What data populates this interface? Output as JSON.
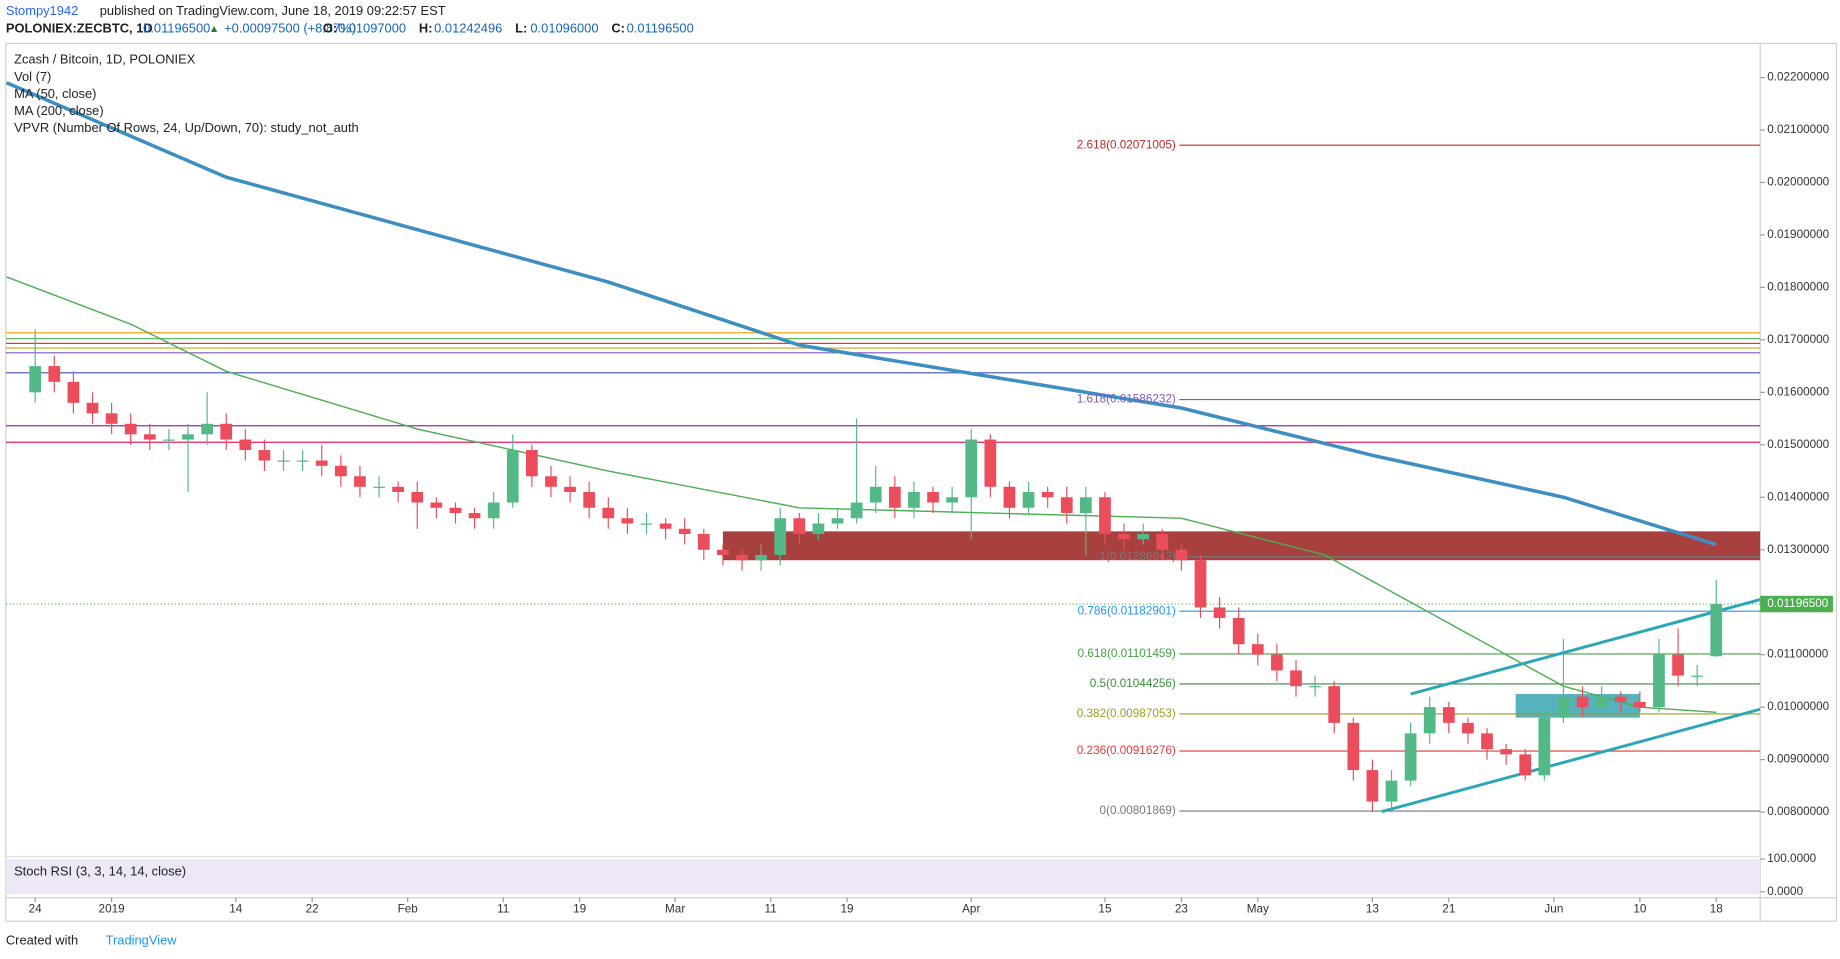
{
  "header": {
    "author": "Stompy1942",
    "published": "published on TradingView.com, June 18, 2019 09:22:57 EST",
    "symbol": "POLONIEX:ZECBTC, 1D",
    "last": "0.01196500",
    "arrow": "▲",
    "change": "+0.00097500 (+8.87%)",
    "ohlc": [
      {
        "key": "O:",
        "value": "0.01097000"
      },
      {
        "key": "H:",
        "value": "0.01242496"
      },
      {
        "key": "L:",
        "value": "0.01096000"
      },
      {
        "key": "C:",
        "value": "0.01196500"
      }
    ]
  },
  "footer": {
    "created": "Created with",
    "brand": "TradingView"
  },
  "chart_data": {
    "type": "candlestick",
    "title": "Zcash / Bitcoin, 1D, POLONIEX",
    "studies": [
      "Vol (7)",
      "MA (50, close)",
      "MA (200, close)",
      "VPVR (Number Of Rows, 24, Up/Down, 70): study_not_auth"
    ],
    "up_color": "#53b987",
    "down_color": "#eb4d5c",
    "x": [
      0,
      2,
      4,
      6,
      8,
      10,
      12,
      14,
      16,
      18,
      20,
      22,
      24,
      26,
      28,
      30,
      32,
      34,
      36,
      38,
      40,
      42,
      44,
      46,
      48,
      50,
      52,
      54,
      56,
      58,
      60,
      62,
      64,
      66,
      68,
      70,
      72,
      74,
      76,
      78,
      80,
      82,
      84,
      86,
      88,
      90,
      92,
      94,
      96,
      98,
      100,
      102,
      104,
      106,
      108,
      110,
      112,
      114,
      116,
      118,
      120,
      122,
      124,
      126,
      128,
      130,
      132,
      134,
      136,
      138,
      140,
      142,
      144,
      146,
      148,
      150,
      152,
      154,
      156,
      158,
      160,
      162,
      164,
      166,
      168,
      170,
      172,
      174,
      176
    ],
    "open": [
      0.016,
      0.0165,
      0.0162,
      0.0158,
      0.0156,
      0.0154,
      0.0152,
      0.0151,
      0.0151,
      0.0152,
      0.0154,
      0.0151,
      0.0149,
      0.0147,
      0.0147,
      0.0147,
      0.0146,
      0.0144,
      0.0142,
      0.0142,
      0.0141,
      0.0139,
      0.0138,
      0.0137,
      0.0136,
      0.0139,
      0.0149,
      0.0144,
      0.0142,
      0.0141,
      0.0138,
      0.0136,
      0.0135,
      0.0135,
      0.0134,
      0.0133,
      0.013,
      0.0129,
      0.0128,
      0.0129,
      0.0136,
      0.0133,
      0.0135,
      0.0136,
      0.0139,
      0.0142,
      0.0138,
      0.0141,
      0.0139,
      0.014,
      0.0151,
      0.0142,
      0.0138,
      0.0141,
      0.014,
      0.0137,
      0.014,
      0.0133,
      0.0132,
      0.0133,
      0.013,
      0.0128,
      0.0119,
      0.0117,
      0.0112,
      0.011,
      0.0107,
      0.0104,
      0.0104,
      0.0097,
      0.0088,
      0.0082,
      0.0086,
      0.0095,
      0.01,
      0.0097,
      0.0095,
      0.0092,
      0.0091,
      0.0087,
      0.0098,
      0.0102,
      0.01,
      0.0102,
      0.0101,
      0.01,
      0.011,
      0.0106,
      0.01097
    ],
    "high": [
      0.0172,
      0.0167,
      0.0164,
      0.016,
      0.0158,
      0.0156,
      0.0154,
      0.0153,
      0.0154,
      0.016,
      0.0156,
      0.0153,
      0.0151,
      0.0149,
      0.0149,
      0.015,
      0.0148,
      0.0146,
      0.0144,
      0.0143,
      0.0143,
      0.014,
      0.0139,
      0.0138,
      0.0141,
      0.0152,
      0.015,
      0.0146,
      0.0144,
      0.0143,
      0.014,
      0.0138,
      0.0137,
      0.0136,
      0.0136,
      0.0134,
      0.0131,
      0.013,
      0.0131,
      0.0138,
      0.0137,
      0.0137,
      0.0138,
      0.0155,
      0.0146,
      0.0144,
      0.0143,
      0.0142,
      0.0142,
      0.0153,
      0.0152,
      0.0143,
      0.0143,
      0.0142,
      0.0142,
      0.0142,
      0.0141,
      0.0135,
      0.0135,
      0.0134,
      0.0131,
      0.0129,
      0.0121,
      0.0119,
      0.0114,
      0.0112,
      0.0109,
      0.0106,
      0.0105,
      0.0098,
      0.009,
      0.0088,
      0.0097,
      0.0102,
      0.0101,
      0.0098,
      0.0096,
      0.0093,
      0.0092,
      0.01,
      0.0113,
      0.0104,
      0.0104,
      0.0103,
      0.0103,
      0.0113,
      0.0115,
      0.0108,
      0.01242496
    ],
    "low": [
      0.0158,
      0.016,
      0.0156,
      0.0154,
      0.0152,
      0.015,
      0.0149,
      0.0149,
      0.0141,
      0.015,
      0.0149,
      0.0147,
      0.0145,
      0.0145,
      0.0145,
      0.0144,
      0.0142,
      0.014,
      0.014,
      0.0139,
      0.0134,
      0.0136,
      0.0135,
      0.0134,
      0.0134,
      0.0138,
      0.0142,
      0.014,
      0.0139,
      0.0136,
      0.0134,
      0.0133,
      0.0133,
      0.0132,
      0.0131,
      0.0128,
      0.0127,
      0.0126,
      0.0126,
      0.0127,
      0.0131,
      0.0132,
      0.0134,
      0.0135,
      0.0137,
      0.0136,
      0.0136,
      0.0137,
      0.0137,
      0.0132,
      0.014,
      0.0136,
      0.0137,
      0.0138,
      0.0135,
      0.0129,
      0.0131,
      0.013,
      0.0131,
      0.0128,
      0.0126,
      0.0117,
      0.0115,
      0.011,
      0.0108,
      0.0105,
      0.0102,
      0.0102,
      0.0095,
      0.0086,
      0.008,
      0.008,
      0.0085,
      0.0093,
      0.0095,
      0.0093,
      0.009,
      0.0089,
      0.0086,
      0.0086,
      0.0097,
      0.0098,
      0.0099,
      0.0099,
      0.0099,
      0.0099,
      0.0104,
      0.0104,
      0.01096
    ],
    "close": [
      0.0165,
      0.0162,
      0.0158,
      0.0156,
      0.0154,
      0.0152,
      0.0151,
      0.0151,
      0.0152,
      0.0154,
      0.0151,
      0.0149,
      0.0147,
      0.0147,
      0.0147,
      0.0146,
      0.0144,
      0.0142,
      0.0142,
      0.0141,
      0.0139,
      0.0138,
      0.0137,
      0.0136,
      0.0139,
      0.0149,
      0.0144,
      0.0142,
      0.0141,
      0.0138,
      0.0136,
      0.0135,
      0.0135,
      0.0134,
      0.0133,
      0.013,
      0.0129,
      0.0128,
      0.0129,
      0.0136,
      0.0133,
      0.0135,
      0.0136,
      0.0139,
      0.0142,
      0.0138,
      0.0141,
      0.0139,
      0.014,
      0.0151,
      0.0142,
      0.0138,
      0.0141,
      0.014,
      0.0137,
      0.014,
      0.0133,
      0.0132,
      0.0133,
      0.013,
      0.0128,
      0.0119,
      0.0117,
      0.0112,
      0.011,
      0.0107,
      0.0104,
      0.0104,
      0.0097,
      0.0088,
      0.0082,
      0.0086,
      0.0095,
      0.01,
      0.0097,
      0.0095,
      0.0092,
      0.0091,
      0.0087,
      0.0098,
      0.0102,
      0.01,
      0.0102,
      0.0101,
      0.01,
      0.011,
      0.0106,
      0.0106,
      0.011965
    ],
    "series": [
      {
        "name": "MA (50, close)",
        "color": "#4caf50",
        "x": [
          -3,
          10,
          20,
          40,
          60,
          80,
          100,
          120,
          135,
          150,
          160,
          168,
          176
        ],
        "values": [
          0.0182,
          0.0173,
          0.0164,
          0.0153,
          0.0145,
          0.0138,
          0.0137,
          0.0136,
          0.0129,
          0.0114,
          0.0104,
          0.01,
          0.0099
        ]
      },
      {
        "name": "MA (200, close)",
        "color": "#3d8fc2",
        "x": [
          -3,
          20,
          60,
          80,
          100,
          120,
          140,
          160,
          176
        ],
        "values": [
          0.0219,
          0.0201,
          0.0181,
          0.0169,
          0.0163,
          0.0157,
          0.0148,
          0.014,
          0.0131
        ]
      }
    ],
    "levels": [
      {
        "value": 0.017134,
        "color": "#ff9800"
      },
      {
        "value": 0.017022,
        "color": "#4caf50"
      },
      {
        "value": 0.016933,
        "color": "#e53935"
      },
      {
        "value": 0.016843,
        "color": "#c9a227"
      },
      {
        "value": 0.016753,
        "color": "#7e57c2"
      },
      {
        "value": 0.016372,
        "color": "#3f51b5"
      },
      {
        "value": 0.015363,
        "color": "#9c27b0"
      },
      {
        "value": 0.015049,
        "color": "#e91e63"
      }
    ],
    "fib": [
      {
        "value": 0.02071005,
        "label": "2.618(0.02071005)",
        "color": "#c62828"
      },
      {
        "value": 0.01586232,
        "label": "1.618(0.01586232)",
        "color": "#7e57c2"
      },
      {
        "value": 0.01286642,
        "label": "1(0.01286642)",
        "color": "#787878"
      },
      {
        "value": 0.01182901,
        "label": "0.786(0.01182901)",
        "color": "#2196f3"
      },
      {
        "value": 0.01101459,
        "label": "0.618(0.01101459)",
        "color": "#43a047"
      },
      {
        "value": 0.01044256,
        "label": "0.5(0.01044256)",
        "color": "#388e3c"
      },
      {
        "value": 0.00987053,
        "label": "0.382(0.00987053)",
        "color": "#9e9d24"
      },
      {
        "value": 0.00916276,
        "label": "0.236(0.00916276)",
        "color": "#e53935"
      },
      {
        "value": 0.00801869,
        "label": "0(0.00801869)",
        "color": "#787878"
      }
    ],
    "zones": [
      {
        "x": [
          72,
          180.6
        ],
        "range": [
          0.0128,
          0.01335
        ],
        "color": "#8b0000"
      },
      {
        "x": [
          155,
          168
        ],
        "range": [
          0.0098,
          0.01025
        ],
        "color": "#1e9aa8"
      }
    ],
    "trendlines": [
      {
        "x": [
          144,
          180.6
        ],
        "values": [
          0.01025,
          0.01205
        ],
        "color": "#2aa6b8"
      },
      {
        "x": [
          141,
          180.6
        ],
        "values": [
          0.00801,
          0.00996
        ],
        "color": "#2aa6b8"
      }
    ],
    "price_line": {
      "value": 0.011965,
      "label": "0.01196500",
      "color": "#4caf50"
    },
    "xlim": [
      -3.07,
      180.6
    ],
    "ylim": [
      0.00715,
      0.02265
    ],
    "xticks": [
      {
        "value": 0,
        "label": "24"
      },
      {
        "value": 8,
        "label": "2019"
      },
      {
        "value": 21,
        "label": "14"
      },
      {
        "value": 29,
        "label": "22"
      },
      {
        "value": 39,
        "label": "Feb"
      },
      {
        "value": 49,
        "label": "11"
      },
      {
        "value": 57,
        "label": "19"
      },
      {
        "value": 67,
        "label": "Mar"
      },
      {
        "value": 77,
        "label": "11"
      },
      {
        "value": 85,
        "label": "19"
      },
      {
        "value": 98,
        "label": "Apr"
      },
      {
        "value": 112,
        "label": "15"
      },
      {
        "value": 120,
        "label": "23"
      },
      {
        "value": 128,
        "label": "May"
      },
      {
        "value": 140,
        "label": "13"
      },
      {
        "value": 148,
        "label": "21"
      },
      {
        "value": 159,
        "label": "Jun"
      },
      {
        "value": 168,
        "label": "10"
      },
      {
        "value": 176,
        "label": "18"
      }
    ],
    "yticks": [
      {
        "value": 0.008,
        "label": "0.00800000"
      },
      {
        "value": 0.009,
        "label": "0.00900000"
      },
      {
        "value": 0.01,
        "label": "0.01000000"
      },
      {
        "value": 0.011,
        "label": "0.01100000"
      },
      {
        "value": 0.013,
        "label": "0.01300000"
      },
      {
        "value": 0.014,
        "label": "0.01400000"
      },
      {
        "value": 0.015,
        "label": "0.01500000"
      },
      {
        "value": 0.016,
        "label": "0.01600000"
      },
      {
        "value": 0.017,
        "label": "0.01700000"
      },
      {
        "value": 0.018,
        "label": "0.01800000"
      },
      {
        "value": 0.019,
        "label": "0.01900000"
      },
      {
        "value": 0.02,
        "label": "0.02000000"
      },
      {
        "value": 0.021,
        "label": "0.02100000"
      },
      {
        "value": 0.022,
        "label": "0.02200000"
      }
    ],
    "stoch": {
      "label": "Stoch RSI (3, 3, 14, 14, close)",
      "ylim": [
        0,
        100
      ],
      "yticks": [
        {
          "value": 100,
          "label": "100.0000"
        },
        {
          "value": 0,
          "label": "0.0000"
        }
      ]
    }
  }
}
